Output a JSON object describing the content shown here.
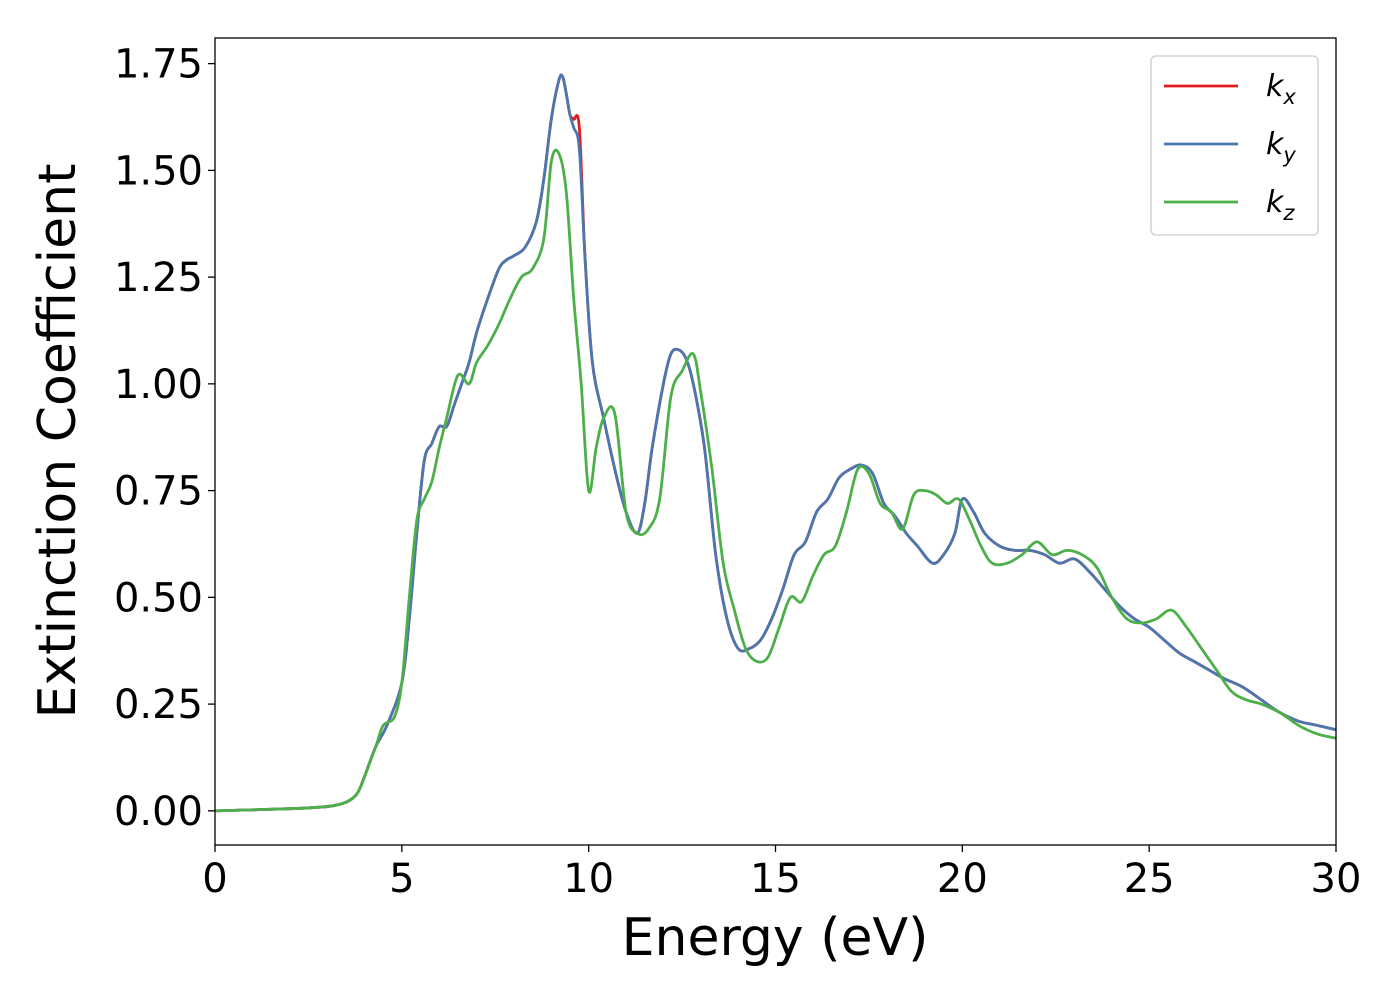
{
  "chart_data": {
    "type": "line",
    "xlabel": "Energy (eV)",
    "ylabel": "Extinction Coefficient",
    "xlim": [
      0,
      30
    ],
    "ylim": [
      -0.08,
      1.81
    ],
    "xticks": [
      0,
      5,
      10,
      15,
      20,
      25,
      30
    ],
    "xtick_labels": [
      "0",
      "5",
      "10",
      "15",
      "20",
      "25",
      "30"
    ],
    "yticks": [
      0.0,
      0.25,
      0.5,
      0.75,
      1.0,
      1.25,
      1.5,
      1.75
    ],
    "ytick_labels": [
      "0.00",
      "0.25",
      "0.50",
      "0.75",
      "1.00",
      "1.25",
      "1.50",
      "1.75"
    ],
    "grid": false,
    "legend_position": "top-right",
    "series": [
      {
        "name": "k_x",
        "legend_base": "k",
        "legend_sub": "x",
        "color": "#e41a1c",
        "x": [
          0,
          2,
          3,
          3.5,
          3.8,
          4.0,
          4.3,
          4.6,
          5.0,
          5.2,
          5.4,
          5.6,
          5.8,
          6.0,
          6.2,
          6.4,
          6.6,
          6.8,
          7.0,
          7.3,
          7.6,
          7.8,
          8.0,
          8.3,
          8.6,
          8.8,
          9.0,
          9.2,
          9.3,
          9.4,
          9.5,
          9.6,
          9.75,
          9.9,
          10.1,
          10.4,
          10.7,
          11.0,
          11.3,
          11.5,
          11.7,
          12.0,
          12.2,
          12.4,
          12.6,
          12.8,
          13.1,
          13.4,
          13.7,
          14.0,
          14.3,
          14.6,
          14.9,
          15.2,
          15.5,
          15.8,
          16.1,
          16.4,
          16.7,
          17.0,
          17.3,
          17.6,
          17.9,
          18.2,
          18.5,
          18.8,
          19.2,
          19.5,
          19.8,
          20.0,
          20.3,
          20.6,
          21.0,
          21.4,
          21.8,
          22.2,
          22.6,
          23.0,
          23.4,
          23.8,
          24.2,
          24.6,
          25.0,
          25.4,
          25.8,
          26.2,
          26.6,
          27.0,
          27.5,
          28.0,
          28.5,
          29.0,
          29.5,
          30.0
        ],
        "y": [
          0.0,
          0.005,
          0.01,
          0.02,
          0.04,
          0.08,
          0.15,
          0.2,
          0.3,
          0.45,
          0.65,
          0.82,
          0.86,
          0.9,
          0.9,
          0.95,
          1.0,
          1.05,
          1.12,
          1.2,
          1.27,
          1.29,
          1.3,
          1.32,
          1.38,
          1.48,
          1.62,
          1.71,
          1.72,
          1.68,
          1.63,
          1.62,
          1.6,
          1.3,
          1.05,
          0.92,
          0.8,
          0.7,
          0.65,
          0.72,
          0.85,
          1.0,
          1.07,
          1.08,
          1.06,
          1.0,
          0.85,
          0.6,
          0.45,
          0.38,
          0.38,
          0.4,
          0.45,
          0.52,
          0.6,
          0.63,
          0.7,
          0.73,
          0.78,
          0.8,
          0.81,
          0.79,
          0.72,
          0.69,
          0.65,
          0.62,
          0.58,
          0.6,
          0.65,
          0.73,
          0.7,
          0.65,
          0.62,
          0.61,
          0.61,
          0.6,
          0.58,
          0.59,
          0.56,
          0.52,
          0.48,
          0.45,
          0.43,
          0.4,
          0.37,
          0.35,
          0.33,
          0.31,
          0.29,
          0.26,
          0.23,
          0.21,
          0.2,
          0.19
        ]
      },
      {
        "name": "k_y",
        "legend_base": "k",
        "legend_sub": "y",
        "color": "#4a77b0",
        "x": [
          0,
          2,
          3,
          3.5,
          3.8,
          4.0,
          4.3,
          4.6,
          5.0,
          5.2,
          5.4,
          5.6,
          5.8,
          6.0,
          6.2,
          6.4,
          6.6,
          6.8,
          7.0,
          7.3,
          7.6,
          7.8,
          8.0,
          8.3,
          8.6,
          8.8,
          9.0,
          9.2,
          9.3,
          9.4,
          9.5,
          9.6,
          9.75,
          9.9,
          10.1,
          10.4,
          10.7,
          11.0,
          11.3,
          11.5,
          11.7,
          12.0,
          12.2,
          12.4,
          12.6,
          12.8,
          13.1,
          13.4,
          13.7,
          14.0,
          14.3,
          14.6,
          14.9,
          15.2,
          15.5,
          15.8,
          16.1,
          16.4,
          16.7,
          17.0,
          17.3,
          17.6,
          17.9,
          18.2,
          18.5,
          18.8,
          19.2,
          19.5,
          19.8,
          20.0,
          20.3,
          20.6,
          21.0,
          21.4,
          21.8,
          22.2,
          22.6,
          23.0,
          23.4,
          23.8,
          24.2,
          24.6,
          25.0,
          25.4,
          25.8,
          26.2,
          26.6,
          27.0,
          27.5,
          28.0,
          28.5,
          29.0,
          29.5,
          30.0
        ],
        "y": [
          0.0,
          0.005,
          0.01,
          0.02,
          0.04,
          0.08,
          0.15,
          0.2,
          0.3,
          0.45,
          0.65,
          0.82,
          0.86,
          0.9,
          0.9,
          0.95,
          1.0,
          1.05,
          1.12,
          1.2,
          1.27,
          1.29,
          1.3,
          1.32,
          1.38,
          1.48,
          1.62,
          1.71,
          1.72,
          1.68,
          1.63,
          1.6,
          1.55,
          1.3,
          1.05,
          0.92,
          0.8,
          0.7,
          0.65,
          0.72,
          0.85,
          1.0,
          1.07,
          1.08,
          1.06,
          1.0,
          0.85,
          0.6,
          0.45,
          0.38,
          0.38,
          0.4,
          0.45,
          0.52,
          0.6,
          0.63,
          0.7,
          0.73,
          0.78,
          0.8,
          0.81,
          0.79,
          0.72,
          0.69,
          0.65,
          0.62,
          0.58,
          0.6,
          0.65,
          0.73,
          0.7,
          0.65,
          0.62,
          0.61,
          0.61,
          0.6,
          0.58,
          0.59,
          0.56,
          0.52,
          0.48,
          0.45,
          0.43,
          0.4,
          0.37,
          0.35,
          0.33,
          0.31,
          0.29,
          0.26,
          0.23,
          0.21,
          0.2,
          0.19
        ]
      },
      {
        "name": "k_z",
        "legend_base": "k",
        "legend_sub": "z",
        "color": "#4daf4a",
        "x": [
          0,
          2,
          3,
          3.5,
          3.8,
          4.0,
          4.3,
          4.5,
          4.8,
          5.0,
          5.2,
          5.4,
          5.6,
          5.8,
          6.0,
          6.2,
          6.5,
          6.8,
          7.0,
          7.3,
          7.6,
          7.9,
          8.2,
          8.5,
          8.8,
          9.0,
          9.2,
          9.4,
          9.6,
          9.8,
          10.0,
          10.2,
          10.4,
          10.7,
          11.0,
          11.3,
          11.6,
          11.9,
          12.2,
          12.5,
          12.8,
          13.0,
          13.3,
          13.6,
          13.9,
          14.2,
          14.5,
          14.8,
          15.1,
          15.4,
          15.7,
          16.0,
          16.3,
          16.6,
          16.9,
          17.2,
          17.5,
          17.8,
          18.1,
          18.4,
          18.7,
          19.0,
          19.3,
          19.6,
          19.9,
          20.2,
          20.5,
          20.8,
          21.2,
          21.6,
          22.0,
          22.4,
          22.8,
          23.2,
          23.6,
          24.0,
          24.4,
          24.8,
          25.2,
          25.6,
          26.0,
          26.4,
          26.8,
          27.2,
          27.6,
          28.0,
          28.5,
          29.0,
          29.5,
          30.0
        ],
        "y": [
          0.0,
          0.005,
          0.01,
          0.02,
          0.04,
          0.08,
          0.15,
          0.2,
          0.22,
          0.3,
          0.5,
          0.68,
          0.73,
          0.77,
          0.85,
          0.92,
          1.02,
          1.0,
          1.05,
          1.09,
          1.14,
          1.2,
          1.25,
          1.27,
          1.34,
          1.52,
          1.54,
          1.45,
          1.2,
          1.0,
          0.75,
          0.85,
          0.92,
          0.93,
          0.7,
          0.65,
          0.66,
          0.73,
          0.97,
          1.03,
          1.07,
          0.98,
          0.8,
          0.58,
          0.47,
          0.38,
          0.35,
          0.36,
          0.43,
          0.5,
          0.49,
          0.55,
          0.6,
          0.62,
          0.7,
          0.8,
          0.79,
          0.72,
          0.7,
          0.66,
          0.74,
          0.75,
          0.74,
          0.72,
          0.73,
          0.68,
          0.62,
          0.58,
          0.58,
          0.6,
          0.63,
          0.6,
          0.61,
          0.6,
          0.57,
          0.5,
          0.45,
          0.44,
          0.45,
          0.47,
          0.43,
          0.38,
          0.33,
          0.28,
          0.26,
          0.25,
          0.23,
          0.2,
          0.18,
          0.17
        ]
      }
    ]
  }
}
